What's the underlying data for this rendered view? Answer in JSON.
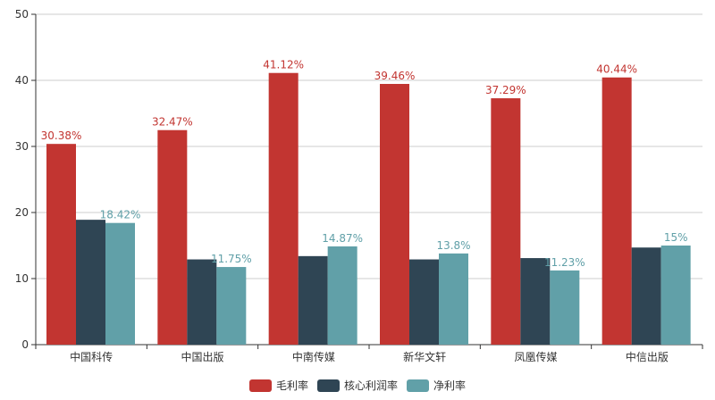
{
  "chart_data": {
    "type": "bar",
    "categories": [
      "中国科传",
      "中国出版",
      "中南传媒",
      "新华文轩",
      "凤凰传媒",
      "中信出版"
    ],
    "series": [
      {
        "name": "毛利率",
        "color": "#c23531",
        "values": [
          30.38,
          32.47,
          41.12,
          39.46,
          37.29,
          40.44
        ],
        "labels": [
          "30.38%",
          "32.47%",
          "41.12%",
          "39.46%",
          "37.29%",
          "40.44%"
        ]
      },
      {
        "name": "核心利润率",
        "color": "#2f4554",
        "values": [
          18.9,
          12.9,
          13.4,
          12.9,
          13.1,
          14.7
        ],
        "labels": null
      },
      {
        "name": "净利率",
        "color": "#61a0a8",
        "values": [
          18.42,
          11.75,
          14.87,
          13.8,
          11.23,
          15
        ],
        "labels": [
          "18.42%",
          "11.75%",
          "14.87%",
          "13.8%",
          "11.23%",
          "15%"
        ]
      }
    ],
    "yticks": [
      "0",
      "10",
      "20",
      "30",
      "40",
      "50"
    ],
    "ylim": [
      0,
      50
    ],
    "grid": true,
    "legend_position": "bottom-center"
  }
}
